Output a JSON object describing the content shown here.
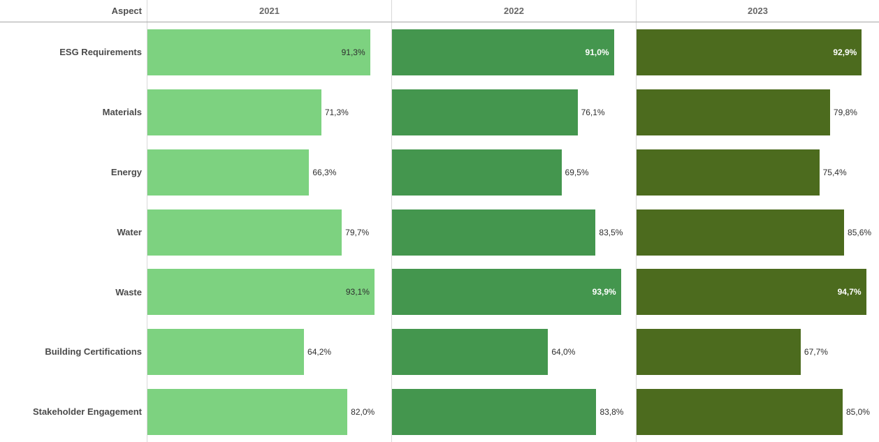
{
  "header": {
    "aspect_label": "Aspect",
    "years": [
      "2021",
      "2022",
      "2023"
    ]
  },
  "chart_data": {
    "type": "bar",
    "orientation": "horizontal",
    "row_header": "Aspect",
    "value_unit": "%",
    "xlim": [
      0,
      100
    ],
    "grid": "column-dividers-only",
    "label_inside_threshold": 88,
    "categories": [
      "ESG Requirements",
      "Materials",
      "Energy",
      "Water",
      "Waste",
      "Building Certifications",
      "Stakeholder Engagement"
    ],
    "series": [
      {
        "name": "2021",
        "color": "#7dd280",
        "text_on_bar": "dark",
        "values": [
          91.3,
          71.3,
          66.3,
          79.7,
          93.1,
          64.2,
          82.0
        ],
        "labels": [
          "91,3%",
          "71,3%",
          "66,3%",
          "79,7%",
          "93,1%",
          "64,2%",
          "82,0%"
        ]
      },
      {
        "name": "2022",
        "color": "#44964e",
        "text_on_bar": "light",
        "values": [
          91.0,
          76.1,
          69.5,
          83.5,
          93.9,
          64.0,
          83.8
        ],
        "labels": [
          "91,0%",
          "76,1%",
          "69,5%",
          "83,5%",
          "93,9%",
          "64,0%",
          "83,8%"
        ]
      },
      {
        "name": "2023",
        "color": "#4c6b1e",
        "text_on_bar": "light",
        "values": [
          92.9,
          79.8,
          75.4,
          85.6,
          94.7,
          67.7,
          85.0
        ],
        "labels": [
          "92,9%",
          "79,8%",
          "75,4%",
          "85,6%",
          "94,7%",
          "67,7%",
          "85,0%"
        ]
      }
    ],
    "colors": {
      "divider": "#d8d8d8",
      "header_underline": "#a6a6a6",
      "label_text": "#2e2e2e",
      "inside_light_text": "#ffffff"
    }
  }
}
